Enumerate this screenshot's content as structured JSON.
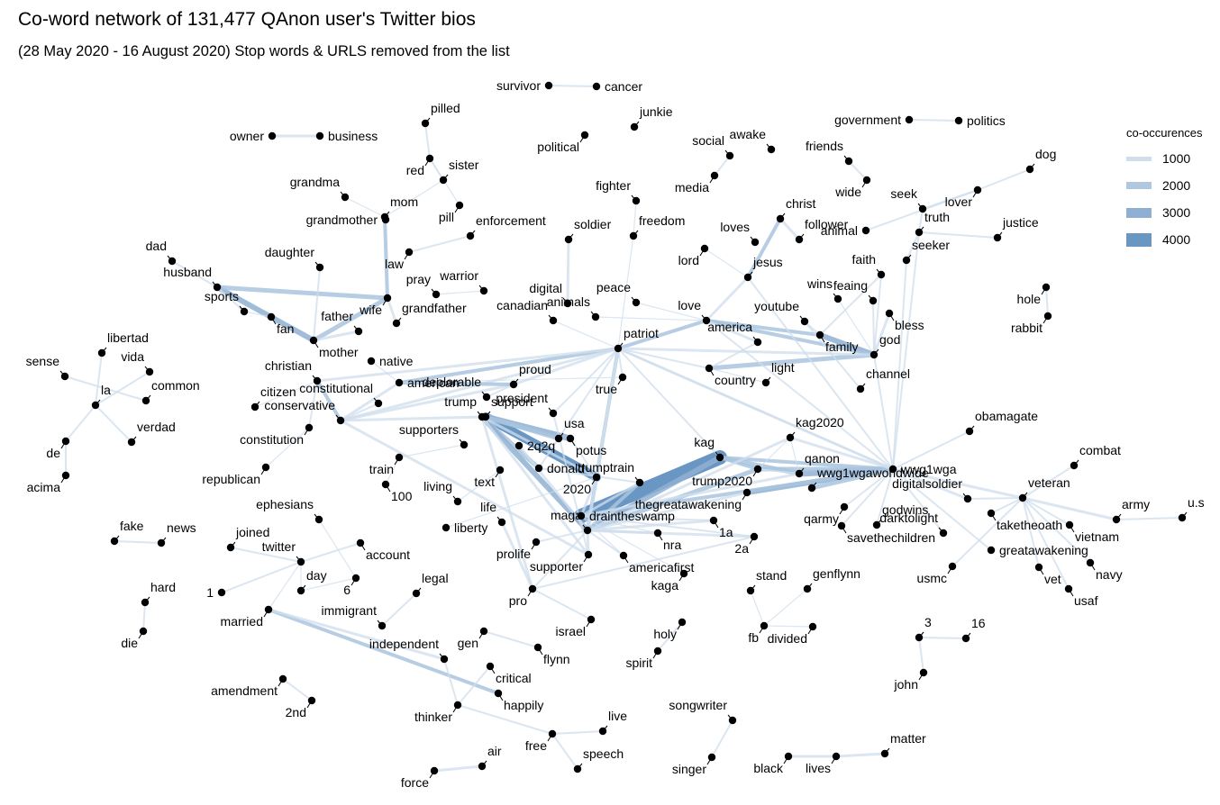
{
  "title": "Co-word network of 131,477 QAnon user's Twitter bios",
  "subtitle": "(28 May 2020 - 16 August 2020) Stop words & URLS removed from the list",
  "legend": {
    "title": "co-occurences",
    "items": [
      {
        "label": "1000",
        "value": 1000,
        "color": "#cfdeec"
      },
      {
        "label": "2000",
        "value": 2000,
        "color": "#afc8e0"
      },
      {
        "label": "3000",
        "value": 3000,
        "color": "#8fb0d2"
      },
      {
        "label": "4000",
        "value": 4000,
        "color": "#6a96c3"
      }
    ]
  },
  "chart_data": {
    "type": "network",
    "nodes": [
      "survivor",
      "cancer",
      "owner",
      "business",
      "pilled",
      "junkie",
      "political",
      "government",
      "politics",
      "red",
      "sister",
      "grandma",
      "mom",
      "pill",
      "grandmother",
      "enforcement",
      "social",
      "media",
      "awake",
      "friends",
      "wide",
      "seek",
      "dog",
      "lover",
      "justice",
      "christ",
      "loves",
      "follower",
      "truth",
      "animal",
      "fighter",
      "soldier",
      "freedom",
      "lord",
      "jesus",
      "faith",
      "seeker",
      "dad",
      "husband",
      "daughter",
      "law",
      "pray",
      "warrior",
      "digital",
      "peace",
      "wins",
      "feaing",
      "hole",
      "rabbit",
      "sports",
      "fan",
      "wife",
      "grandfather",
      "canadian",
      "animals",
      "love",
      "youtube",
      "bless",
      "libertad",
      "sense",
      "vida",
      "mother",
      "father",
      "patriot",
      "america",
      "family",
      "god",
      "native",
      "common",
      "la",
      "christian",
      "constitutional",
      "american",
      "proud",
      "true",
      "country",
      "light",
      "channel",
      "citizen",
      "verdad",
      "conservative",
      "president",
      "deplorable",
      "usa",
      "trump",
      "support",
      "kag2020",
      "obamagate",
      "de",
      "constitution",
      "supporters",
      "potus",
      "kag",
      "wwg1wga",
      "combat",
      "train",
      "2q2q",
      "donald",
      "trumptrain",
      "qanon",
      "acima",
      "republican",
      "100",
      "living",
      "text",
      "2020",
      "trump2020",
      "wwg1wgaworldwide",
      "digitalsoldier",
      "veteran",
      "thegreatawakening",
      "qarmy",
      "godwins",
      "army",
      "u.s",
      "life",
      "draintheswamp",
      "taketheoath",
      "fake",
      "news",
      "joined",
      "ephesians",
      "maga",
      "1a",
      "nra",
      "2a",
      "savethechildren",
      "vietnam",
      "account",
      "liberty",
      "prolife",
      "darktolight",
      "greatawakening",
      "twitter",
      "day",
      "6",
      "supporter",
      "americafirst",
      "usmc",
      "navy",
      "hard",
      "1",
      "married",
      "legal",
      "kaga",
      "stand",
      "genflynn",
      "vet",
      "usaf",
      "pro",
      "immigrant",
      "israel",
      "fb",
      "divided",
      "3",
      "16",
      "holy",
      "die",
      "independent",
      "gen",
      "flynn",
      "spirit",
      "critical",
      "john",
      "amendment",
      "2nd",
      "happily",
      "thinker",
      "songwriter",
      "live",
      "matter",
      "free",
      "speech",
      "black",
      "lives",
      "singer",
      "air",
      "force"
    ],
    "edge_weights": {
      "max_edge": "kag-draintheswamp",
      "scale_min": 1000,
      "scale_max": 4000
    }
  }
}
